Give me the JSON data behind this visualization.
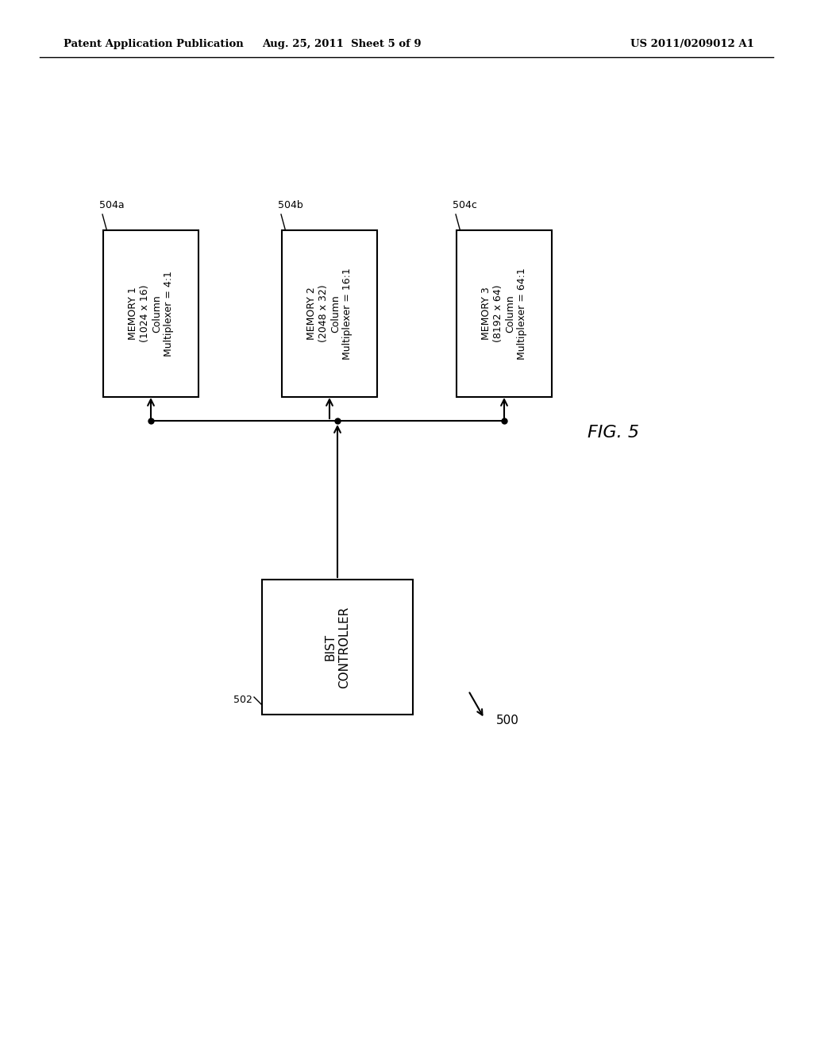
{
  "bg_color": "#ffffff",
  "header_left": "Patent Application Publication",
  "header_center": "Aug. 25, 2011  Sheet 5 of 9",
  "header_right": "US 2011/0209012 A1",
  "fig_label": "FIG. 5",
  "system_label": "500",
  "bist_label": "502",
  "bist_text": "BIST\nCONTROLLER",
  "memories": [
    {
      "label": "504a",
      "line1": "MEMORY 1",
      "line2": "(1024 x 16)",
      "line3": "Column",
      "line4": "Multiplexer = 4:1"
    },
    {
      "label": "504b",
      "line1": "MEMORY 2",
      "line2": "(2048 x 32)",
      "line3": "Column",
      "line4": "Multiplexer = 16:1"
    },
    {
      "label": "504c",
      "line1": "MEMORY 3",
      "line2": "(8192 x 64)",
      "line3": "Column",
      "line4": "Multiplexer = 64:1"
    }
  ]
}
